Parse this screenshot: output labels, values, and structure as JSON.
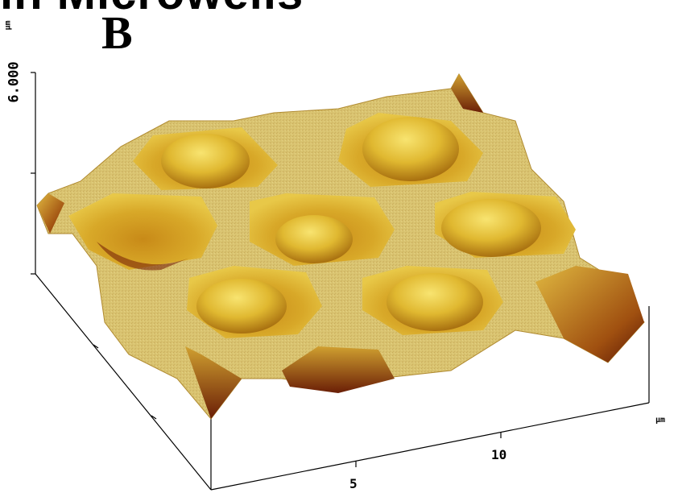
{
  "figure": {
    "header_text": "in Microwells",
    "panel_label": "B"
  },
  "axes": {
    "z_unit": "µm",
    "z_max_label": "6.000",
    "x_unit": "µm",
    "x_ticks": [
      "5",
      "10"
    ]
  },
  "colors": {
    "surface_top": "#d8c06a",
    "surface_edge": "#c49a2a",
    "well_light": "#e8c848",
    "well_dark": "#7a2408",
    "cell_light": "#f4dc5a",
    "cell_dark": "#b07a10",
    "axis": "#000000"
  }
}
